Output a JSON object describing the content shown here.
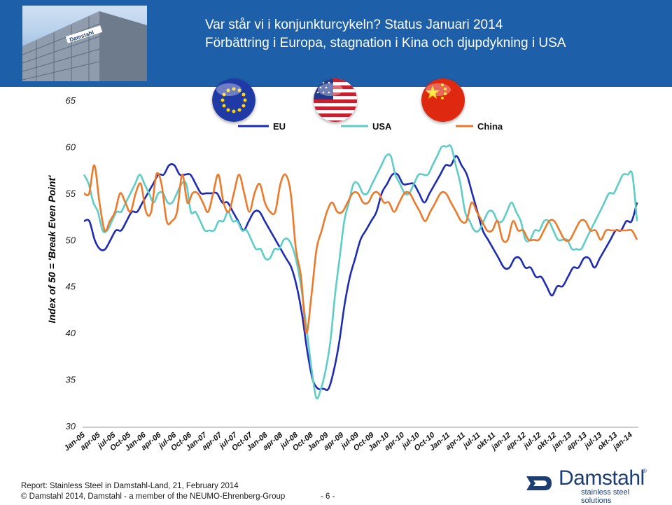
{
  "header": {
    "title": "Var står vi i konjunkturcykeln?  Status Januari 2014",
    "subtitle": "Förbättring i Europa, stagnation i Kina och djupdykning i USA"
  },
  "photo_logo_text": "Damstahl",
  "colors": {
    "header_bg": "#1d5fa8",
    "EU": "#1e2bb4",
    "USA": "#5ecdc6",
    "China": "#ec7a2a"
  },
  "chart_data": {
    "type": "line",
    "ylabel": "Index of 50 = 'Break Even Point'",
    "ylim": [
      30,
      65
    ],
    "yticks": [
      "30",
      "35",
      "40",
      "45",
      "50",
      "55",
      "60",
      "65"
    ],
    "x_tick_labels": [
      "Jan-05",
      "apr-05",
      "jul-05",
      "Oct-05",
      "Jan-06",
      "apr-06",
      "jul-06",
      "Oct-06",
      "Jan-07",
      "apr-07",
      "jul-07",
      "Oct-07",
      "Jan-08",
      "apr-08",
      "jul-08",
      "Oct-08",
      "Jan-09",
      "apr-09",
      "jul-09",
      "Oct-09",
      "Jan-10",
      "apr-10",
      "jul-10",
      "Oct-10",
      "Jan-11",
      "apr-11",
      "jul-11",
      "okt-11",
      "jan-12",
      "apr-12",
      "jul-12",
      "okt-12",
      "jan-13",
      "apr-13",
      "jul-13",
      "okt-13",
      "jan-14"
    ],
    "legend": [
      "EU",
      "USA",
      "China"
    ],
    "legend_position": "top-right",
    "grid": false,
    "series": [
      {
        "name": "EU",
        "values": [
          52,
          52,
          50,
          49,
          49,
          50,
          51,
          51,
          52,
          53,
          53,
          54,
          55,
          56,
          57,
          57,
          58,
          58,
          57,
          57,
          57,
          56,
          55,
          55,
          55,
          55,
          54,
          54,
          53,
          52,
          51,
          52,
          53,
          53,
          52,
          51,
          50,
          49,
          48,
          47,
          45,
          42,
          38,
          35,
          34,
          34,
          34,
          36,
          39,
          43,
          46,
          48,
          50,
          51,
          52,
          53,
          55,
          56,
          57,
          57,
          56,
          56,
          56,
          55,
          54,
          55,
          56,
          57,
          58,
          58,
          59,
          58,
          57,
          55,
          53,
          51,
          50,
          49,
          48,
          47,
          47,
          48,
          48,
          47,
          47,
          46,
          46,
          45,
          44,
          45,
          45,
          46,
          47,
          47,
          48,
          48,
          47,
          48,
          49,
          50,
          51,
          51,
          52,
          52,
          54
        ]
      },
      {
        "name": "USA",
        "values": [
          57,
          56,
          54,
          53,
          51,
          51,
          52,
          53,
          53,
          54,
          55,
          56,
          57,
          56,
          55,
          54,
          55,
          55,
          54,
          54,
          55,
          56,
          56,
          53,
          53,
          52,
          51,
          51,
          51,
          52,
          52,
          53,
          52,
          52,
          51,
          51,
          50,
          49,
          49,
          48,
          48,
          49,
          49,
          50,
          50,
          49,
          47,
          44,
          40,
          36,
          33,
          34,
          36,
          39,
          44,
          48,
          52,
          54,
          56,
          56,
          55,
          55,
          56,
          57,
          58,
          59,
          59,
          57,
          56,
          55,
          55,
          56,
          57,
          57,
          57,
          58,
          59,
          60,
          60,
          60,
          58,
          56,
          53,
          52,
          51,
          51,
          52,
          53,
          53,
          52,
          52,
          53,
          54,
          53,
          52,
          50,
          50,
          51,
          51,
          52,
          52,
          51,
          50,
          50,
          50,
          49,
          49,
          49,
          50,
          51,
          52,
          53,
          54,
          55,
          55,
          56,
          57,
          57,
          57,
          52
        ]
      },
      {
        "name": "China",
        "values": [
          55,
          55,
          58,
          54,
          51,
          52,
          53,
          55,
          54,
          53,
          55,
          56,
          53,
          53,
          57,
          56,
          52,
          52,
          53,
          57,
          54,
          55,
          55,
          54,
          53,
          55,
          57,
          54,
          53,
          55,
          57,
          55,
          53,
          55,
          56,
          54,
          53,
          53,
          56,
          57,
          55,
          49,
          46,
          40,
          44,
          49,
          51,
          53,
          54,
          53,
          53,
          54,
          55,
          55,
          54,
          54,
          55,
          55,
          54,
          54,
          53,
          54,
          55,
          55,
          54,
          53,
          52,
          53,
          54,
          55,
          55,
          54,
          53,
          52,
          52,
          54,
          53,
          52,
          51,
          51,
          52,
          50,
          50,
          52,
          51,
          51,
          50,
          50,
          50,
          51,
          52,
          52,
          51,
          50,
          50,
          51,
          52,
          52,
          51,
          51,
          50,
          51,
          51,
          51,
          51,
          51,
          51,
          50
        ]
      }
    ]
  },
  "footer": {
    "report": "Report: Stainless Steel in Damstahl-Land, 21, February 2014",
    "copyright": "© Damstahl 2014, Damstahl - a member of the NEUMO-Ehrenberg-Group",
    "page": "- 6 -"
  },
  "logo": {
    "name": "Damstahl",
    "tagline": "stainless steel solutions"
  }
}
